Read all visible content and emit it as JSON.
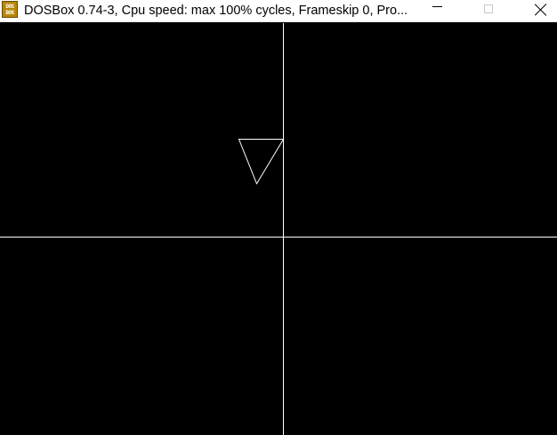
{
  "window": {
    "title": "DOSBox 0.74-3, Cpu speed: max 100% cycles, Frameskip  0, Pro...",
    "icon_lines": [
      "DOS",
      "BOX"
    ],
    "icon": "dosbox-app-icon",
    "controls": {
      "minimize_icon": "minimize-icon",
      "maximize_icon": "maximize-icon",
      "close_icon": "close-icon"
    }
  },
  "screen": {
    "background": "#000000",
    "line_color": "#ffffff"
  }
}
